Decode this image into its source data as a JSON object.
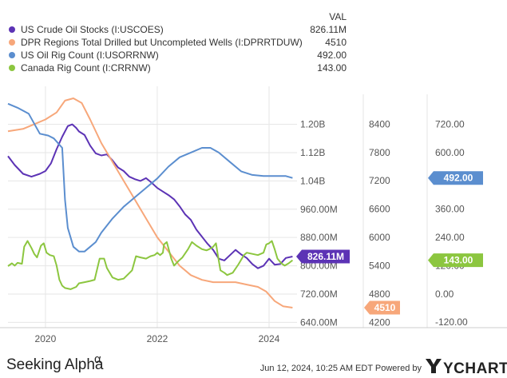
{
  "colors": {
    "crude": "#5c33b5",
    "duc": "#f7a77a",
    "rig_us": "#5b8ecf",
    "rig_ca": "#8cc63f",
    "grid": "#e6e6e6",
    "tag_text": "#ffffff"
  },
  "legend_header": "VAL",
  "footer": {
    "brand": "Seeking Alpha",
    "alpha_symbol": "α",
    "timestamp": "Jun 12, 2024, 10:25 AM EDT Powered by",
    "ycharts": "YCHARTS"
  },
  "chart_data": {
    "type": "line",
    "x_axis": {
      "ticks": [
        "2020",
        "2022",
        "2024"
      ],
      "range": [
        "2019-05",
        "2024-06"
      ]
    },
    "axes": [
      {
        "id": "crude",
        "ticks": [
          "640.00M",
          "720.00M",
          "800.00M",
          "880.00M",
          "960.00M",
          "1.04B",
          "1.12B",
          "1.20B"
        ],
        "tick_values": [
          640,
          720,
          800,
          880,
          960,
          1040,
          1120,
          1200
        ],
        "range": [
          625,
          1285
        ],
        "unit": "M"
      },
      {
        "id": "duc",
        "ticks": [
          "4200",
          "4800",
          "5400",
          "6000",
          "6600",
          "7200",
          "7800",
          "8400"
        ],
        "tick_values": [
          4200,
          4800,
          5400,
          6000,
          6600,
          7200,
          7800,
          8400
        ],
        "range": [
          4086,
          9034
        ]
      },
      {
        "id": "rig",
        "ticks": [
          "-120.00",
          "0.00",
          "120.00",
          "240.00",
          "360.00",
          "480.00",
          "600.00",
          "720.00"
        ],
        "tick_values": [
          -120,
          0,
          120,
          240,
          360,
          480,
          600,
          720
        ],
        "range": [
          -143,
          847
        ]
      }
    ],
    "series": [
      {
        "key": "crude",
        "name": "US Crude Oil Stocks (I:USCOES)",
        "value": "826.11M",
        "tag": "826.11M",
        "axis": "crude",
        "points": [
          [
            2019.33,
            1110
          ],
          [
            2019.45,
            1085
          ],
          [
            2019.6,
            1060
          ],
          [
            2019.75,
            1052
          ],
          [
            2019.9,
            1060
          ],
          [
            2020.0,
            1068
          ],
          [
            2020.1,
            1090
          ],
          [
            2020.2,
            1130
          ],
          [
            2020.3,
            1165
          ],
          [
            2020.4,
            1195
          ],
          [
            2020.48,
            1200
          ],
          [
            2020.55,
            1190
          ],
          [
            2020.6,
            1180
          ],
          [
            2020.7,
            1170
          ],
          [
            2020.8,
            1140
          ],
          [
            2020.9,
            1118
          ],
          [
            2021.0,
            1112
          ],
          [
            2021.1,
            1115
          ],
          [
            2021.2,
            1098
          ],
          [
            2021.3,
            1078
          ],
          [
            2021.4,
            1068
          ],
          [
            2021.5,
            1052
          ],
          [
            2021.6,
            1045
          ],
          [
            2021.7,
            1040
          ],
          [
            2021.8,
            1048
          ],
          [
            2021.9,
            1035
          ],
          [
            2022.0,
            1020
          ],
          [
            2022.1,
            1010
          ],
          [
            2022.2,
            1000
          ],
          [
            2022.3,
            988
          ],
          [
            2022.4,
            968
          ],
          [
            2022.5,
            945
          ],
          [
            2022.6,
            930
          ],
          [
            2022.7,
            902
          ],
          [
            2022.8,
            882
          ],
          [
            2022.9,
            862
          ],
          [
            2023.0,
            845
          ],
          [
            2023.1,
            820
          ],
          [
            2023.2,
            815
          ],
          [
            2023.3,
            830
          ],
          [
            2023.4,
            845
          ],
          [
            2023.5,
            832
          ],
          [
            2023.6,
            822
          ],
          [
            2023.7,
            805
          ],
          [
            2023.8,
            793
          ],
          [
            2023.9,
            800
          ],
          [
            2024.0,
            820
          ],
          [
            2024.1,
            803
          ],
          [
            2024.2,
            805
          ],
          [
            2024.3,
            822
          ],
          [
            2024.42,
            826.11
          ]
        ]
      },
      {
        "key": "duc",
        "name": "DPR Regions Total Drilled but Uncompleted Wells (I:DPRRTDUW)",
        "value": "4510",
        "tag": "4510",
        "axis": "duc",
        "points": [
          [
            2019.33,
            8250
          ],
          [
            2019.6,
            8300
          ],
          [
            2019.8,
            8400
          ],
          [
            2020.0,
            8500
          ],
          [
            2020.2,
            8650
          ],
          [
            2020.35,
            8900
          ],
          [
            2020.5,
            8950
          ],
          [
            2020.65,
            8850
          ],
          [
            2020.8,
            8500
          ],
          [
            2021.0,
            8000
          ],
          [
            2021.2,
            7600
          ],
          [
            2021.4,
            7200
          ],
          [
            2021.6,
            6800
          ],
          [
            2021.8,
            6400
          ],
          [
            2022.0,
            6000
          ],
          [
            2022.2,
            5700
          ],
          [
            2022.4,
            5400
          ],
          [
            2022.6,
            5200
          ],
          [
            2022.8,
            5100
          ],
          [
            2023.0,
            5050
          ],
          [
            2023.2,
            5050
          ],
          [
            2023.4,
            5050
          ],
          [
            2023.6,
            5000
          ],
          [
            2023.8,
            4950
          ],
          [
            2023.95,
            4850
          ],
          [
            2024.1,
            4650
          ],
          [
            2024.25,
            4540
          ],
          [
            2024.42,
            4510
          ]
        ]
      },
      {
        "key": "rig_us",
        "name": "US Oil Rig Count (I:USORRNW)",
        "value": "492.00",
        "tag": "492.00",
        "axis": "rig",
        "points": [
          [
            2019.33,
            807
          ],
          [
            2019.5,
            790
          ],
          [
            2019.7,
            765
          ],
          [
            2019.9,
            680
          ],
          [
            2020.05,
            672
          ],
          [
            2020.15,
            660
          ],
          [
            2020.3,
            620
          ],
          [
            2020.35,
            400
          ],
          [
            2020.4,
            280
          ],
          [
            2020.5,
            200
          ],
          [
            2020.6,
            180
          ],
          [
            2020.7,
            180
          ],
          [
            2020.8,
            200
          ],
          [
            2020.9,
            220
          ],
          [
            2021.0,
            260
          ],
          [
            2021.2,
            320
          ],
          [
            2021.4,
            370
          ],
          [
            2021.6,
            410
          ],
          [
            2021.8,
            450
          ],
          [
            2022.0,
            490
          ],
          [
            2022.2,
            540
          ],
          [
            2022.4,
            580
          ],
          [
            2022.6,
            600
          ],
          [
            2022.8,
            620
          ],
          [
            2022.95,
            620
          ],
          [
            2023.1,
            600
          ],
          [
            2023.3,
            560
          ],
          [
            2023.5,
            520
          ],
          [
            2023.7,
            505
          ],
          [
            2023.9,
            500
          ],
          [
            2024.1,
            500
          ],
          [
            2024.3,
            500
          ],
          [
            2024.42,
            492
          ]
        ]
      },
      {
        "key": "rig_ca",
        "name": "Canada Rig Count (I:CRRNW)",
        "value": "143.00",
        "tag": "143.00",
        "axis": "rig",
        "points": [
          [
            2019.33,
            118
          ],
          [
            2019.4,
            130
          ],
          [
            2019.45,
            120
          ],
          [
            2019.5,
            132
          ],
          [
            2019.58,
            128
          ],
          [
            2019.62,
            200
          ],
          [
            2019.68,
            225
          ],
          [
            2019.75,
            195
          ],
          [
            2019.8,
            170
          ],
          [
            2019.85,
            155
          ],
          [
            2019.92,
            205
          ],
          [
            2019.97,
            215
          ],
          [
            2020.02,
            175
          ],
          [
            2020.08,
            165
          ],
          [
            2020.15,
            160
          ],
          [
            2020.2,
            120
          ],
          [
            2020.25,
            60
          ],
          [
            2020.3,
            35
          ],
          [
            2020.35,
            25
          ],
          [
            2020.45,
            20
          ],
          [
            2020.55,
            30
          ],
          [
            2020.6,
            45
          ],
          [
            2020.7,
            50
          ],
          [
            2020.8,
            55
          ],
          [
            2020.88,
            60
          ],
          [
            2020.92,
            100
          ],
          [
            2020.97,
            150
          ],
          [
            2021.05,
            150
          ],
          [
            2021.1,
            110
          ],
          [
            2021.2,
            70
          ],
          [
            2021.3,
            60
          ],
          [
            2021.4,
            65
          ],
          [
            2021.55,
            100
          ],
          [
            2021.62,
            160
          ],
          [
            2021.7,
            155
          ],
          [
            2021.8,
            150
          ],
          [
            2021.88,
            160
          ],
          [
            2021.95,
            165
          ],
          [
            2022.0,
            175
          ],
          [
            2022.05,
            165
          ],
          [
            2022.1,
            175
          ],
          [
            2022.12,
            210
          ],
          [
            2022.17,
            220
          ],
          [
            2022.25,
            150
          ],
          [
            2022.3,
            120
          ],
          [
            2022.38,
            140
          ],
          [
            2022.45,
            155
          ],
          [
            2022.55,
            190
          ],
          [
            2022.62,
            220
          ],
          [
            2022.7,
            205
          ],
          [
            2022.8,
            190
          ],
          [
            2022.88,
            185
          ],
          [
            2022.93,
            190
          ],
          [
            2023.0,
            200
          ],
          [
            2023.05,
            215
          ],
          [
            2023.08,
            170
          ],
          [
            2023.13,
            100
          ],
          [
            2023.2,
            90
          ],
          [
            2023.25,
            80
          ],
          [
            2023.35,
            90
          ],
          [
            2023.45,
            125
          ],
          [
            2023.55,
            165
          ],
          [
            2023.6,
            175
          ],
          [
            2023.7,
            170
          ],
          [
            2023.8,
            165
          ],
          [
            2023.85,
            170
          ],
          [
            2023.9,
            175
          ],
          [
            2023.95,
            210
          ],
          [
            2024.0,
            215
          ],
          [
            2024.05,
            225
          ],
          [
            2024.1,
            190
          ],
          [
            2024.15,
            150
          ],
          [
            2024.22,
            130
          ],
          [
            2024.28,
            120
          ],
          [
            2024.35,
            130
          ],
          [
            2024.42,
            143
          ]
        ]
      }
    ]
  }
}
